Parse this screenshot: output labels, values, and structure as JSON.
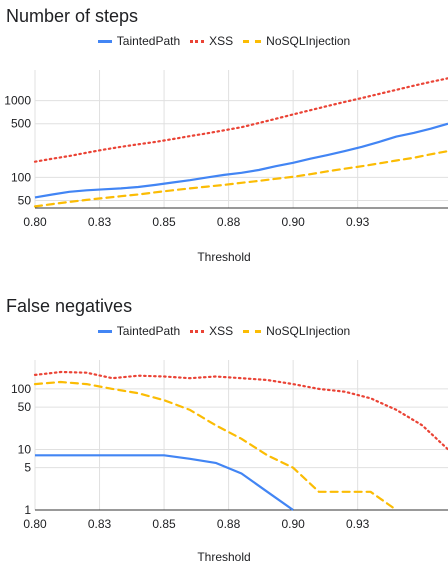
{
  "chart_data": [
    {
      "type": "line",
      "title": "Number of steps",
      "xlabel": "Threshold",
      "ylabel": "",
      "yscale": "log",
      "xlim": [
        0.8,
        0.96
      ],
      "ylim": [
        40,
        2500
      ],
      "xticks": [
        0.8,
        0.825,
        0.85,
        0.875,
        0.9,
        0.925
      ],
      "xtick_labels": [
        "0.80",
        "0.83",
        "0.85",
        "0.88",
        "0.90",
        "0.93"
      ],
      "yticks": [
        50,
        100,
        500,
        1000
      ],
      "ytick_labels": [
        "50",
        "100",
        "500",
        "1000"
      ],
      "grid": true,
      "legend_position": "top",
      "x": [
        0.8,
        0.8067,
        0.8133,
        0.82,
        0.8267,
        0.8333,
        0.84,
        0.8467,
        0.8533,
        0.86,
        0.8667,
        0.8733,
        0.88,
        0.8867,
        0.8933,
        0.9,
        0.9067,
        0.9133,
        0.92,
        0.9267,
        0.9333,
        0.94,
        0.9467,
        0.9533,
        0.96
      ],
      "series": [
        {
          "name": "TaintedPath",
          "color": "#4285F4",
          "style": "solid",
          "values": [
            55,
            60,
            65,
            68,
            70,
            72,
            75,
            80,
            86,
            92,
            100,
            108,
            115,
            125,
            140,
            155,
            175,
            195,
            220,
            250,
            290,
            340,
            380,
            430,
            500
          ]
        },
        {
          "name": "XSS",
          "color": "#EA4335",
          "style": "dotted",
          "values": [
            160,
            175,
            190,
            210,
            230,
            250,
            270,
            290,
            315,
            345,
            375,
            410,
            450,
            510,
            580,
            660,
            750,
            850,
            960,
            1080,
            1220,
            1380,
            1560,
            1750,
            1950
          ]
        },
        {
          "name": "NoSQLInjection",
          "color": "#FBBC04",
          "style": "dashed",
          "values": [
            42,
            45,
            48,
            51,
            54,
            57,
            60,
            64,
            68,
            72,
            76,
            80,
            85,
            90,
            96,
            102,
            110,
            120,
            130,
            140,
            152,
            166,
            180,
            200,
            220
          ]
        }
      ]
    },
    {
      "type": "line",
      "title": "False negatives",
      "xlabel": "Threshold",
      "ylabel": "",
      "yscale": "log",
      "xlim": [
        0.8,
        0.96
      ],
      "ylim": [
        1,
        300
      ],
      "xticks": [
        0.8,
        0.825,
        0.85,
        0.875,
        0.9,
        0.925
      ],
      "xtick_labels": [
        "0.80",
        "0.83",
        "0.85",
        "0.88",
        "0.90",
        "0.93"
      ],
      "yticks": [
        1,
        5,
        10,
        50,
        100
      ],
      "ytick_labels": [
        "1",
        "5",
        "10",
        "50",
        "100"
      ],
      "grid": true,
      "legend_position": "top",
      "series": [
        {
          "name": "TaintedPath",
          "color": "#4285F4",
          "style": "solid",
          "x": [
            0.8,
            0.82,
            0.84,
            0.85,
            0.86,
            0.87,
            0.88,
            0.89,
            0.9
          ],
          "values": [
            8,
            8,
            8,
            8,
            7,
            6,
            4,
            2,
            1
          ]
        },
        {
          "name": "XSS",
          "color": "#EA4335",
          "style": "dotted",
          "x": [
            0.8,
            0.81,
            0.82,
            0.83,
            0.84,
            0.85,
            0.86,
            0.87,
            0.88,
            0.89,
            0.9,
            0.91,
            0.92,
            0.93,
            0.94,
            0.95,
            0.96
          ],
          "values": [
            170,
            190,
            185,
            150,
            165,
            160,
            150,
            160,
            150,
            140,
            120,
            100,
            90,
            70,
            45,
            25,
            10
          ]
        },
        {
          "name": "NoSQLInjection",
          "color": "#FBBC04",
          "style": "dashed",
          "x": [
            0.8,
            0.81,
            0.82,
            0.83,
            0.84,
            0.85,
            0.86,
            0.87,
            0.88,
            0.89,
            0.9,
            0.91,
            0.92,
            0.93,
            0.94
          ],
          "values": [
            120,
            130,
            120,
            100,
            85,
            65,
            45,
            25,
            15,
            8,
            5,
            2,
            2,
            2,
            1
          ]
        }
      ]
    }
  ]
}
